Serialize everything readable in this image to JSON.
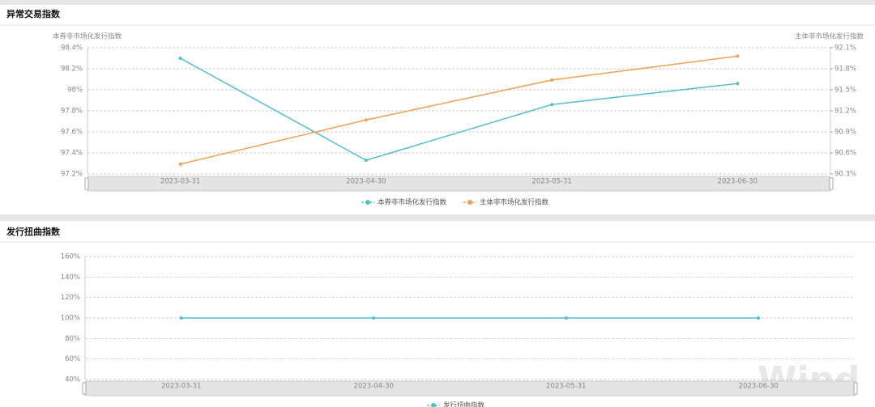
{
  "watermark": "Wind",
  "chart_data": [
    {
      "type": "line",
      "title": "异常交易指数",
      "y_label": "本券非市场化发行指数",
      "y2_label": "主体非市场化发行指数",
      "categories": [
        "2023-03-31",
        "2023-04-30",
        "2023-05-31",
        "2023-06-30"
      ],
      "series": [
        {
          "name": "本券非市场化发行指数",
          "color": "#4fbfcc",
          "values": [
            98.3,
            97.33,
            97.86,
            98.06
          ]
        },
        {
          "name": "主体非市场化发行指数",
          "color": "#f0a050",
          "axis": "y2",
          "values": [
            90.44,
            91.07,
            91.64,
            91.98
          ]
        }
      ],
      "ylim": [
        97.2,
        98.4
      ],
      "yticks": [
        {
          "value": 97.2,
          "label": "97.2%"
        },
        {
          "value": 97.4,
          "label": "97.4%"
        },
        {
          "value": 97.6,
          "label": "97.6%"
        },
        {
          "value": 97.8,
          "label": "97.8%"
        },
        {
          "value": 98,
          "label": "98%"
        },
        {
          "value": 98.2,
          "label": "98.2%"
        },
        {
          "value": 98.4,
          "label": "98.4%"
        }
      ],
      "y2lim": [
        90.3,
        92.1
      ],
      "y2ticks": [
        {
          "value": 90.3,
          "label": "90.3%"
        },
        {
          "value": 90.6,
          "label": "90.6%"
        },
        {
          "value": 90.9,
          "label": "90.9%"
        },
        {
          "value": 91.2,
          "label": "91.2%"
        },
        {
          "value": 91.5,
          "label": "91.5%"
        },
        {
          "value": 91.8,
          "label": "91.8%"
        },
        {
          "value": 92.1,
          "label": "92.1%"
        }
      ],
      "grid": true
    },
    {
      "type": "line",
      "title": "发行扭曲指数",
      "categories": [
        "2023-03-31",
        "2023-04-30",
        "2023-05-31",
        "2023-06-30"
      ],
      "series": [
        {
          "name": "发行扭曲指数",
          "color": "#4fbfcc",
          "values": [
            100,
            100,
            100,
            100
          ]
        }
      ],
      "ylim": [
        40,
        160
      ],
      "yticks": [
        {
          "value": 40,
          "label": "40%"
        },
        {
          "value": 60,
          "label": "60%"
        },
        {
          "value": 80,
          "label": "80%"
        },
        {
          "value": 100,
          "label": "100%"
        },
        {
          "value": 120,
          "label": "120%"
        },
        {
          "value": 140,
          "label": "140%"
        },
        {
          "value": 160,
          "label": "160%"
        }
      ],
      "grid": true
    }
  ]
}
